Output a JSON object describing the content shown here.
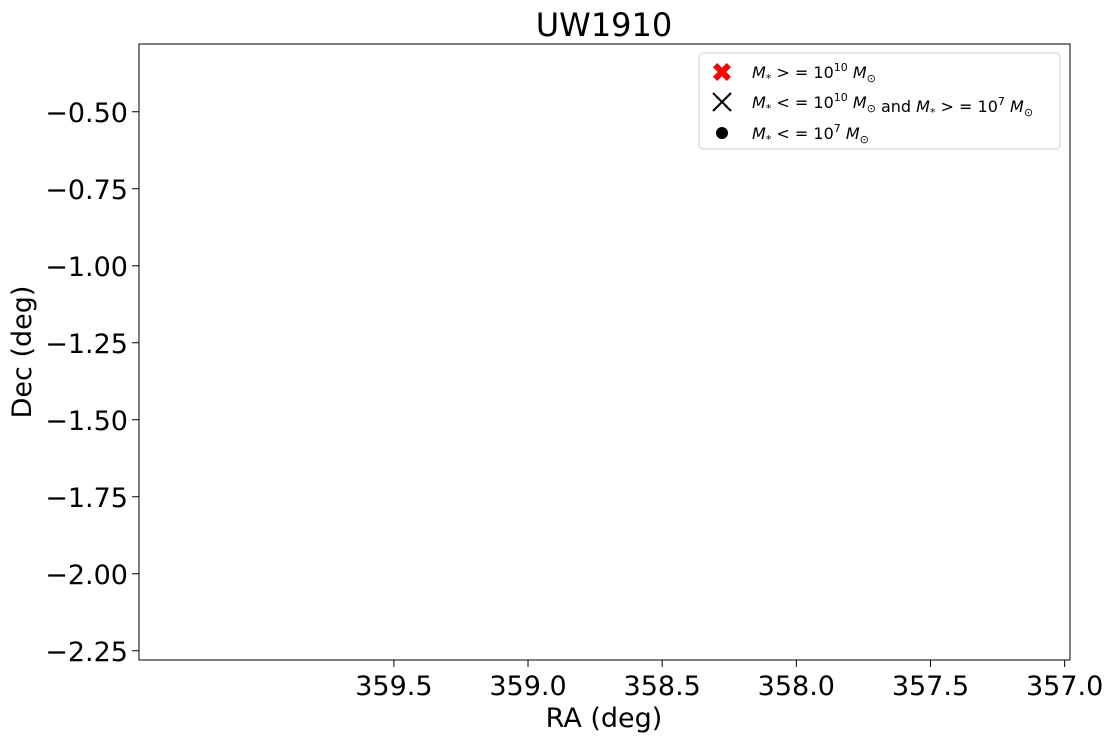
{
  "chart_data": {
    "type": "scatter",
    "title": "UW1910",
    "xlabel": "RA (deg)",
    "ylabel": "Dec (deg)",
    "xlim": [
      360.45,
      356.98
    ],
    "ylim": [
      -2.28,
      -0.28
    ],
    "x_inverted": true,
    "grid": false,
    "legend_position": "top-right",
    "xticks": [
      {
        "value": 359.5,
        "label": "359.5"
      },
      {
        "value": 359.0,
        "label": "359.0"
      },
      {
        "value": 358.5,
        "label": "358.5"
      },
      {
        "value": 358.0,
        "label": "358.0"
      },
      {
        "value": 357.5,
        "label": "357.5"
      },
      {
        "value": 357.0,
        "label": "357.0"
      }
    ],
    "yticks": [
      {
        "value": -0.5,
        "label": "−0.50"
      },
      {
        "value": -0.75,
        "label": "−0.75"
      },
      {
        "value": -1.0,
        "label": "−1.00"
      },
      {
        "value": -1.25,
        "label": "−1.25"
      },
      {
        "value": -1.5,
        "label": "−1.50"
      },
      {
        "value": -1.75,
        "label": "−1.75"
      },
      {
        "value": -2.0,
        "label": "−2.00"
      },
      {
        "value": -2.25,
        "label": "−2.25"
      }
    ],
    "series": [
      {
        "marker": "filled-x",
        "color": "#ff0000",
        "legend": {
          "m": "M",
          "sub": "*",
          "op": " > = 10",
          "exp": "10",
          "unit": "M",
          "unitsub": "⊙",
          "rest": ""
        },
        "points": []
      },
      {
        "marker": "x",
        "color": "#000000",
        "legend": {
          "m": "M",
          "sub": "*",
          "op": " < = 10",
          "exp": "10",
          "unit": "M",
          "unitsub": "⊙",
          "rest": " and ",
          "m2": "M",
          "sub2": "*",
          "op2": " > = 10",
          "exp2": "7",
          "unit2": "M",
          "unitsub2": "⊙"
        },
        "points": []
      },
      {
        "marker": "circle",
        "color": "#000000",
        "legend": {
          "m": "M",
          "sub": "*",
          "op": " < = 10",
          "exp": "7",
          "unit": "M",
          "unitsub": "⊙",
          "rest": ""
        },
        "points": []
      }
    ]
  }
}
